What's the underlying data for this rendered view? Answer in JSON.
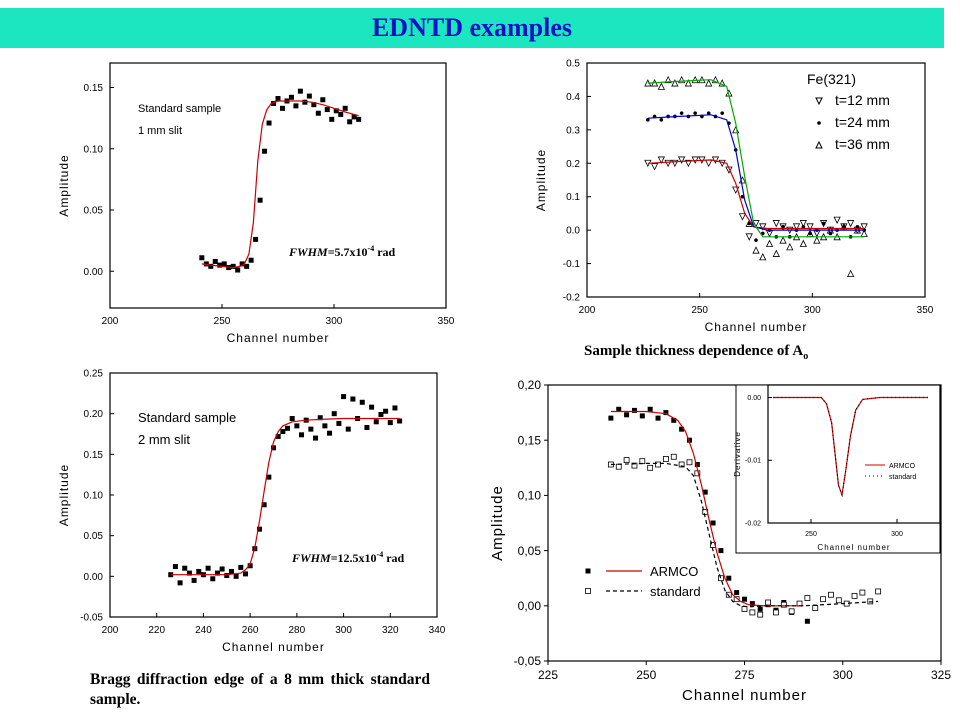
{
  "header": {
    "title": "EDNTD examples"
  },
  "captions": {
    "thickness": "Sample thickness dependence  of A",
    "thickness_sub": "o",
    "bragg": "Bragg  diffraction  edge  of  a  8 mm thick standard sample."
  },
  "chart_data": [
    {
      "id": "c1",
      "type": "scatter",
      "xlabel": "Channel number",
      "ylabel": "Amplitude",
      "xlim": [
        200,
        350
      ],
      "ylim": [
        -0.03,
        0.17
      ],
      "xticks": [
        200,
        250,
        300,
        350
      ],
      "yticks": [
        0.0,
        0.05,
        0.1,
        0.15
      ],
      "ytick_decimals": 2,
      "note_lines": [
        "Standard sample",
        "1 mm slit"
      ],
      "fwhm": {
        "label": "FWHM",
        "value": "=5.7x10",
        "exp": "-4",
        "unit": " rad"
      },
      "series": [
        {
          "marker": "square",
          "color": "#000000",
          "x": [
            241,
            243,
            245,
            247,
            249,
            251,
            253,
            255,
            257,
            259,
            261,
            263,
            265,
            267,
            269,
            271,
            273,
            275,
            277,
            279,
            281,
            283,
            285,
            287,
            289,
            291,
            293,
            295,
            297,
            299,
            301,
            303,
            305,
            307,
            309,
            311
          ],
          "y": [
            0.011,
            0.006,
            0.004,
            0.008,
            0.005,
            0.006,
            0.003,
            0.004,
            0.001,
            0.006,
            0.004,
            0.009,
            0.026,
            0.058,
            0.098,
            0.121,
            0.137,
            0.141,
            0.133,
            0.139,
            0.142,
            0.135,
            0.147,
            0.138,
            0.143,
            0.136,
            0.129,
            0.14,
            0.132,
            0.124,
            0.131,
            0.128,
            0.133,
            0.122,
            0.126,
            0.124
          ]
        },
        {
          "marker": "line",
          "color": "#cc0000",
          "x": [
            241,
            245,
            250,
            255,
            258,
            260,
            262,
            264,
            266,
            268,
            270,
            272,
            275,
            280,
            285,
            290,
            295,
            300,
            305,
            311
          ],
          "y": [
            0.006,
            0.005,
            0.004,
            0.003,
            0.004,
            0.006,
            0.014,
            0.04,
            0.09,
            0.12,
            0.132,
            0.137,
            0.139,
            0.139,
            0.139,
            0.138,
            0.136,
            0.133,
            0.13,
            0.127
          ]
        }
      ]
    },
    {
      "id": "c2",
      "type": "scatter",
      "xlabel": "Channel number",
      "ylabel": "Amplitude",
      "xlim": [
        200,
        350
      ],
      "ylim": [
        -0.2,
        0.5
      ],
      "xticks": [
        200,
        250,
        300,
        350
      ],
      "yticks": [
        -0.2,
        -0.1,
        0.0,
        0.1,
        0.2,
        0.3,
        0.4,
        0.5
      ],
      "ytick_decimals": 1,
      "legend_title": "Fe(321)",
      "series": [
        {
          "name": "t=12 mm",
          "marker": "triangle-down",
          "color": "#000000",
          "x": [
            227,
            230,
            233,
            236,
            239,
            242,
            245,
            248,
            251,
            254,
            257,
            260,
            263,
            266,
            269,
            272,
            275,
            278,
            281,
            284,
            287,
            290,
            293,
            296,
            299,
            302,
            305,
            308,
            311,
            314,
            317,
            320,
            323
          ],
          "y": [
            0.2,
            0.19,
            0.21,
            0.2,
            0.2,
            0.21,
            0.2,
            0.21,
            0.21,
            0.2,
            0.21,
            0.2,
            0.18,
            0.12,
            0.04,
            -0.02,
            0.02,
            0.01,
            -0.01,
            0.02,
            0.01,
            0.0,
            0.01,
            0.02,
            0.01,
            -0.01,
            0.02,
            0.0,
            0.03,
            0.01,
            0.02,
            0.0,
            0.01
          ]
        },
        {
          "name": "t=24 mm",
          "marker": "dot",
          "color": "#000000",
          "x": [
            227,
            230,
            233,
            236,
            239,
            242,
            245,
            248,
            251,
            254,
            257,
            260,
            263,
            266,
            269,
            272,
            275,
            278,
            281,
            284,
            287,
            290,
            293,
            296,
            299,
            302,
            305,
            308,
            311,
            314,
            317,
            320,
            323
          ],
          "y": [
            0.33,
            0.34,
            0.33,
            0.34,
            0.34,
            0.35,
            0.34,
            0.35,
            0.34,
            0.35,
            0.34,
            0.35,
            0.32,
            0.24,
            0.1,
            0.02,
            -0.03,
            -0.01,
            0.0,
            -0.02,
            0.01,
            -0.02,
            0.0,
            0.01,
            -0.01,
            0.0,
            0.02,
            -0.01,
            0.0,
            0.01,
            -0.02,
            0.01,
            0.0
          ]
        },
        {
          "name": "t=36 mm",
          "marker": "triangle-up",
          "color": "#000000",
          "x": [
            227,
            230,
            233,
            236,
            239,
            242,
            245,
            248,
            251,
            254,
            257,
            260,
            263,
            266,
            269,
            272,
            275,
            278,
            281,
            284,
            287,
            290,
            293,
            296,
            299,
            302,
            305,
            308,
            311,
            314,
            317,
            320,
            323
          ],
          "y": [
            0.44,
            0.44,
            0.43,
            0.45,
            0.44,
            0.45,
            0.44,
            0.45,
            0.45,
            0.44,
            0.45,
            0.44,
            0.41,
            0.3,
            0.15,
            0.02,
            -0.06,
            -0.08,
            -0.04,
            -0.07,
            -0.03,
            -0.05,
            -0.02,
            -0.04,
            -0.01,
            -0.03,
            -0.02,
            0.0,
            -0.02,
            0.01,
            -0.13,
            0.0,
            -0.01
          ]
        },
        {
          "marker": "line",
          "color": "#cc0000",
          "x": [
            227,
            240,
            255,
            262,
            266,
            270,
            274,
            280,
            300,
            323
          ],
          "y": [
            0.2,
            0.205,
            0.21,
            0.2,
            0.14,
            0.05,
            0.01,
            0.005,
            0.005,
            0.005
          ]
        },
        {
          "marker": "line",
          "color": "#0000cc",
          "x": [
            227,
            240,
            255,
            262,
            266,
            270,
            274,
            280,
            300,
            323
          ],
          "y": [
            0.335,
            0.34,
            0.345,
            0.33,
            0.24,
            0.09,
            0.01,
            0.0,
            0.0,
            0.0
          ]
        },
        {
          "marker": "line",
          "color": "#00aa00",
          "x": [
            227,
            240,
            255,
            262,
            266,
            270,
            274,
            278,
            300,
            323
          ],
          "y": [
            0.44,
            0.445,
            0.45,
            0.43,
            0.32,
            0.16,
            0.02,
            -0.02,
            -0.02,
            -0.02
          ]
        }
      ]
    },
    {
      "id": "c3",
      "type": "scatter",
      "xlabel": "Channel number",
      "ylabel": "Amplitude",
      "xlim": [
        200,
        340
      ],
      "ylim": [
        -0.05,
        0.25
      ],
      "xticks": [
        200,
        220,
        240,
        260,
        280,
        300,
        320,
        340
      ],
      "yticks": [
        -0.05,
        0.0,
        0.05,
        0.1,
        0.15,
        0.2,
        0.25
      ],
      "ytick_decimals": 2,
      "note_lines": [
        "Standard sample",
        "2 mm slit"
      ],
      "fwhm": {
        "label": "FWHM",
        "value": "=12.5x10",
        "exp": "-4",
        "unit": " rad"
      },
      "series": [
        {
          "marker": "square",
          "color": "#000000",
          "x": [
            226,
            228,
            230,
            232,
            234,
            236,
            238,
            240,
            242,
            244,
            246,
            248,
            250,
            252,
            254,
            256,
            258,
            260,
            262,
            264,
            266,
            268,
            270,
            272,
            274,
            276,
            278,
            280,
            282,
            284,
            286,
            288,
            290,
            292,
            294,
            296,
            298,
            300,
            302,
            304,
            306,
            308,
            310,
            312,
            314,
            316,
            318,
            320,
            322,
            324
          ],
          "y": [
            0.002,
            0.012,
            -0.008,
            0.01,
            0.004,
            -0.005,
            0.006,
            0.002,
            0.01,
            -0.003,
            0.004,
            0.009,
            0.001,
            0.006,
            0.0,
            0.011,
            0.003,
            0.013,
            0.034,
            0.058,
            0.088,
            0.122,
            0.158,
            0.172,
            0.178,
            0.182,
            0.194,
            0.185,
            0.174,
            0.192,
            0.181,
            0.17,
            0.195,
            0.185,
            0.176,
            0.2,
            0.188,
            0.221,
            0.181,
            0.218,
            0.194,
            0.214,
            0.183,
            0.208,
            0.19,
            0.199,
            0.203,
            0.189,
            0.207,
            0.191
          ]
        },
        {
          "marker": "line",
          "color": "#cc0000",
          "x": [
            226,
            240,
            250,
            256,
            258,
            260,
            262,
            264,
            266,
            268,
            270,
            272,
            274,
            278,
            284,
            290,
            300,
            310,
            324
          ],
          "y": [
            0.002,
            0.002,
            0.002,
            0.004,
            0.008,
            0.015,
            0.035,
            0.068,
            0.105,
            0.14,
            0.165,
            0.178,
            0.185,
            0.19,
            0.192,
            0.193,
            0.194,
            0.194,
            0.194
          ]
        }
      ]
    },
    {
      "id": "c4",
      "type": "scatter",
      "xlabel": "Channel number",
      "ylabel": "Amplitude",
      "xlim": [
        225,
        325
      ],
      "ylim": [
        -0.05,
        0.2
      ],
      "xticks": [
        225,
        250,
        275,
        300,
        325
      ],
      "yticks": [
        -0.05,
        0.0,
        0.05,
        0.1,
        0.15,
        0.2
      ],
      "ytick_decimals": 2,
      "decimal_comma": true,
      "series": [
        {
          "name": "ARMCO",
          "marker": "square",
          "color": "#000000",
          "x": [
            241,
            243,
            245,
            247,
            249,
            251,
            253,
            255,
            257,
            259,
            261,
            263,
            265,
            267,
            269,
            271,
            273,
            275,
            277,
            279,
            281,
            283,
            285,
            287,
            289,
            291
          ],
          "y": [
            0.17,
            0.178,
            0.173,
            0.177,
            0.172,
            0.178,
            0.17,
            0.175,
            0.168,
            0.16,
            0.15,
            0.128,
            0.103,
            0.075,
            0.05,
            0.025,
            0.012,
            0.006,
            0.002,
            -0.003,
            0.001,
            -0.004,
            0.003,
            -0.006,
            0.002,
            -0.014
          ]
        },
        {
          "name": "standard",
          "marker": "open-square",
          "color": "#000000",
          "x": [
            241,
            243,
            245,
            247,
            249,
            251,
            253,
            255,
            257,
            259,
            261,
            263,
            265,
            267,
            269,
            271,
            273,
            275,
            277,
            279,
            281,
            283,
            285,
            287,
            289,
            291,
            293,
            295,
            297,
            299,
            301,
            303,
            305,
            307,
            309
          ],
          "y": [
            0.128,
            0.126,
            0.132,
            0.127,
            0.131,
            0.125,
            0.128,
            0.133,
            0.135,
            0.128,
            0.13,
            0.12,
            0.085,
            0.055,
            0.025,
            0.01,
            0.006,
            -0.003,
            -0.006,
            -0.008,
            0.003,
            -0.006,
            0.001,
            -0.005,
            0.002,
            0.007,
            -0.002,
            0.006,
            0.01,
            0.005,
            0.002,
            0.009,
            0.012,
            0.004,
            0.013
          ]
        },
        {
          "name": "ARMCO",
          "marker": "line",
          "color": "#cc0000",
          "x": [
            241,
            250,
            255,
            258,
            260,
            262,
            264,
            266,
            268,
            270,
            272,
            274,
            276,
            280,
            285,
            290
          ],
          "y": [
            0.176,
            0.176,
            0.174,
            0.168,
            0.158,
            0.138,
            0.11,
            0.078,
            0.048,
            0.025,
            0.01,
            0.004,
            0.001,
            0.0,
            0.0,
            0.0
          ]
        },
        {
          "name": "standard",
          "marker": "dashed",
          "color": "#000000",
          "x": [
            241,
            250,
            255,
            260,
            262,
            264,
            266,
            268,
            270,
            272,
            274,
            276,
            280,
            290,
            300,
            309
          ],
          "y": [
            0.128,
            0.129,
            0.129,
            0.126,
            0.118,
            0.095,
            0.065,
            0.035,
            0.014,
            0.004,
            0.0,
            -0.001,
            0.0,
            0.0,
            0.002,
            0.004
          ]
        }
      ]
    },
    {
      "id": "c5",
      "type": "line",
      "xlabel": "Channel number",
      "ylabel": "Derivative",
      "xlim": [
        225,
        325
      ],
      "ylim": [
        -0.02,
        0.002
      ],
      "xticks": [
        250,
        300
      ],
      "yticks": [
        0.0,
        -0.01,
        -0.02
      ],
      "ytick_decimals": 2,
      "series": [
        {
          "name": "ARMCO",
          "marker": "line",
          "color": "#cc0000",
          "x": [
            228,
            240,
            250,
            256,
            259,
            262,
            264,
            266,
            268,
            270,
            273,
            276,
            280,
            290,
            300,
            318
          ],
          "y": [
            0.0,
            0.0,
            0.0,
            0.0,
            -0.001,
            -0.004,
            -0.009,
            -0.014,
            -0.0155,
            -0.012,
            -0.006,
            -0.002,
            -0.0003,
            0.0,
            0.0,
            0.0
          ]
        },
        {
          "name": "standard",
          "marker": "dotted",
          "color": "#000000",
          "x": [
            228,
            240,
            250,
            256,
            259,
            262,
            264,
            266,
            268,
            270,
            273,
            276,
            280,
            290,
            300,
            318
          ],
          "y": [
            0.0,
            0.0,
            0.0,
            0.0,
            -0.001,
            -0.004,
            -0.009,
            -0.014,
            -0.0155,
            -0.012,
            -0.006,
            -0.002,
            -0.0003,
            0.0,
            0.0,
            0.0
          ]
        }
      ]
    }
  ]
}
